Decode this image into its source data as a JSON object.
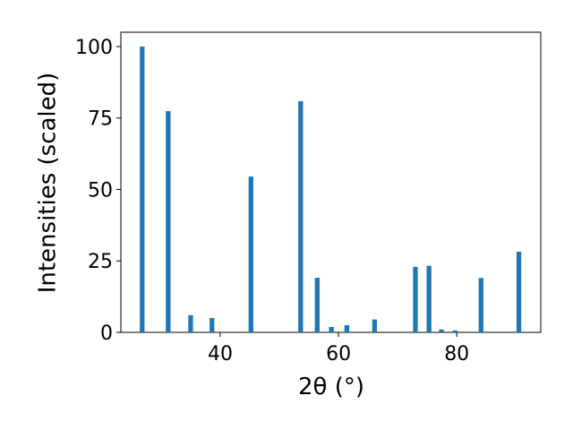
{
  "chart_data": {
    "type": "bar",
    "xlabel": "2θ (°)",
    "ylabel": "Intensities (scaled)",
    "x": [
      26.8,
      31.2,
      35.0,
      38.6,
      45.2,
      53.6,
      56.4,
      58.8,
      61.4,
      66.1,
      73.0,
      75.3,
      77.4,
      79.7,
      84.1,
      90.5
    ],
    "values": [
      100,
      77.4,
      6.0,
      5.0,
      54.5,
      80.9,
      19.1,
      1.9,
      2.5,
      4.5,
      22.9,
      23.3,
      1.0,
      0.7,
      19.0,
      28.2
    ],
    "color": "#1f77b4",
    "xlim": [
      23.2,
      94.2
    ],
    "ylim": [
      0,
      105
    ],
    "xticks": [
      40,
      60,
      80
    ],
    "yticks": [
      0,
      25,
      50,
      75,
      100
    ]
  }
}
